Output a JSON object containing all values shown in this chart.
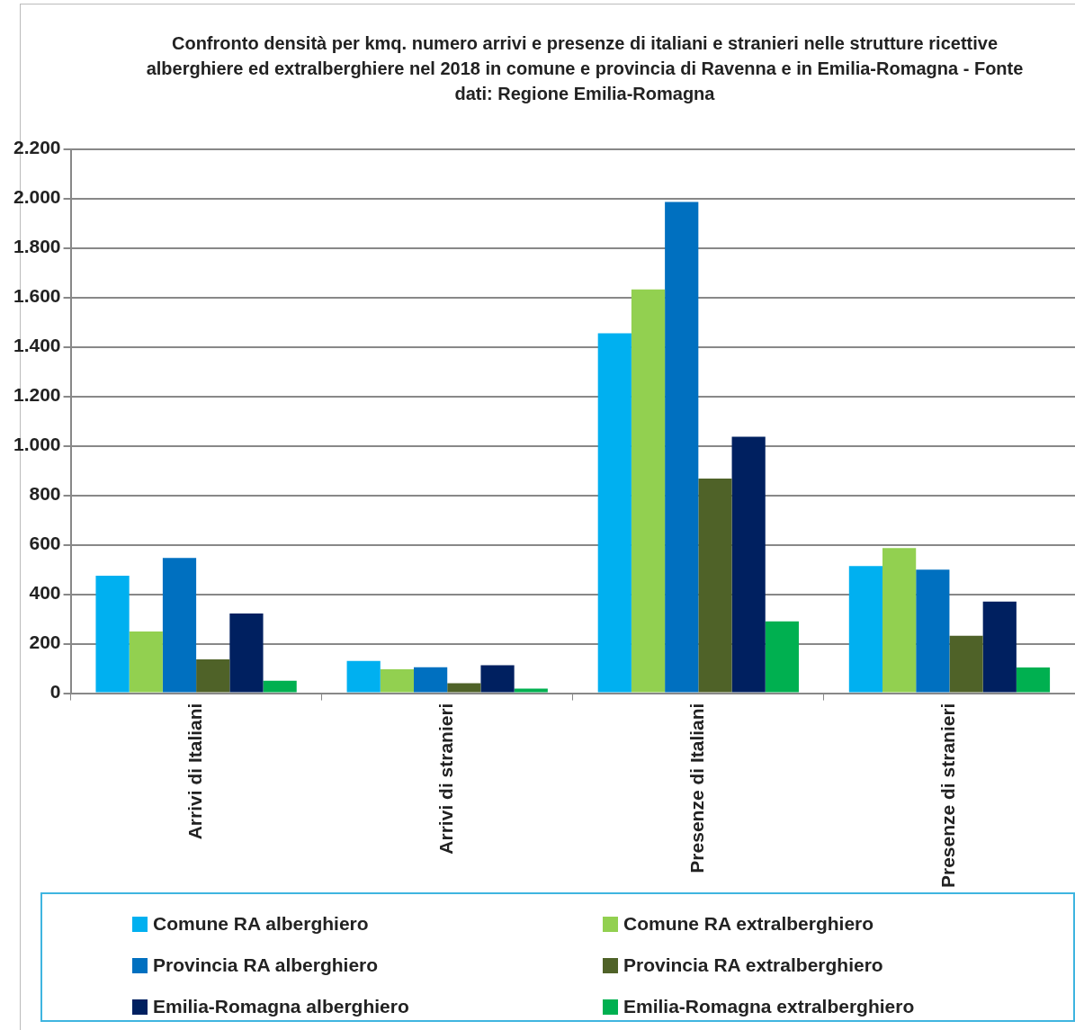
{
  "chart_data": {
    "type": "bar",
    "title": "Confronto densità per kmq. numero arrivi e presenze di italiani e stranieri nelle strutture ricettive alberghiere ed extralberghiere nel 2018 in comune e provincia di Ravenna e in Emilia-Romagna - Fonte dati: Regione Emilia-Romagna",
    "categories": [
      "Arrivi di Italiani",
      "Arrivi di stranieri",
      "Presenze di Italiani",
      "Presenze di stranieri"
    ],
    "series": [
      {
        "name": "Comune RA alberghiero",
        "color": "#00b0f0",
        "values": [
          475,
          130,
          1455,
          514
        ]
      },
      {
        "name": "Comune RA extralberghiero",
        "color": "#92d050",
        "values": [
          249,
          97,
          1632,
          587
        ]
      },
      {
        "name": "Provincia RA alberghiero",
        "color": "#0070c0",
        "values": [
          547,
          105,
          1986,
          499
        ]
      },
      {
        "name": "Provincia RA extralberghiero",
        "color": "#4f6228",
        "values": [
          137,
          40,
          868,
          232
        ]
      },
      {
        "name": "Emilia-Romagna alberghiero",
        "color": "#002060",
        "values": [
          322,
          113,
          1037,
          370
        ]
      },
      {
        "name": "Emilia-Romagna extralberghiero",
        "color": "#00b050",
        "values": [
          50,
          18,
          290,
          104
        ]
      }
    ],
    "ylim": [
      0,
      2200
    ],
    "yticks": [
      0,
      200,
      400,
      600,
      800,
      {
        "value": 1000,
        "label": "1.000"
      },
      {
        "value": 1200,
        "label": "1.200"
      },
      {
        "value": 1400,
        "label": "1.400"
      },
      {
        "value": 1600,
        "label": "1.600"
      },
      {
        "value": 1800,
        "label": "1.800"
      },
      {
        "value": 2000,
        "label": "2.000"
      },
      {
        "value": 2200,
        "label": "2.200"
      }
    ],
    "grid": "y",
    "legend": "bottom"
  }
}
